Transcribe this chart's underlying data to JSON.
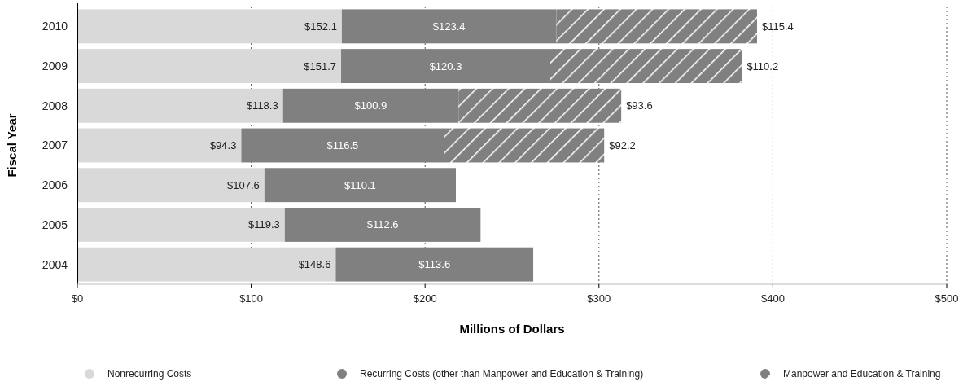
{
  "chart_data": {
    "type": "bar",
    "orientation": "horizontal",
    "stacked": true,
    "xlabel": "Millions of Dollars",
    "ylabel": "Fiscal Year",
    "categories": [
      "2010",
      "2009",
      "2008",
      "2007",
      "2006",
      "2005",
      "2004"
    ],
    "series": [
      {
        "name": "Nonrecurring Costs",
        "color": "#d9d9d9",
        "values": [
          152.1,
          151.7,
          118.3,
          94.3,
          107.6,
          119.3,
          148.6
        ],
        "value_labels": [
          "$152.1",
          "$151.7",
          "$118.3",
          "$94.3",
          "$107.6",
          "$119.3",
          "$148.6"
        ]
      },
      {
        "name": "Recurring Costs (other than Manpower and Education & Training)",
        "color": "#808080",
        "values": [
          123.4,
          120.3,
          100.9,
          116.5,
          110.1,
          112.6,
          113.6
        ],
        "value_labels": [
          "$123.4",
          "$120.3",
          "$100.9",
          "$116.5",
          "$110.1",
          "$112.6",
          "$113.6"
        ]
      },
      {
        "name": "Manpower and Education & Training",
        "color": "#808080",
        "values": [
          115.4,
          110.2,
          93.6,
          92.2,
          null,
          null,
          null
        ],
        "value_labels": [
          "$115.4",
          "$110.2",
          "$93.6",
          "$92.2",
          null,
          null,
          null
        ]
      }
    ],
    "xlim": [
      0,
      500
    ],
    "xticks": [
      {
        "value": 0,
        "label": "$0"
      },
      {
        "value": 100,
        "label": "$100"
      },
      {
        "value": 200,
        "label": "$200"
      },
      {
        "value": 300,
        "label": "$300"
      },
      {
        "value": 400,
        "label": "$400"
      },
      {
        "value": 500,
        "label": "$500"
      }
    ],
    "grid": "x",
    "legend": "bottom"
  }
}
